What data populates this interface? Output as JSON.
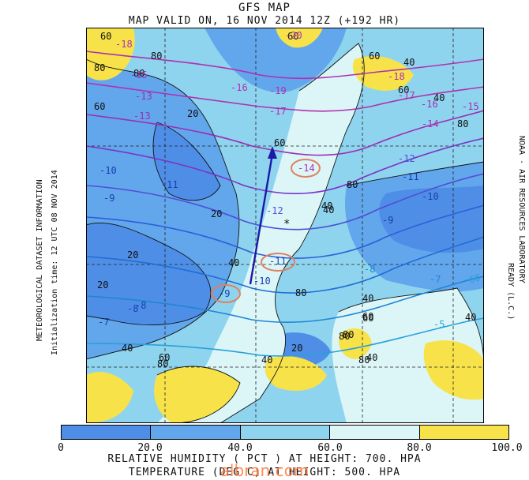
{
  "header": {
    "title": "GFS MAP",
    "subtitle": "MAP VALID ON, 16 NOV 2014 12Z (+192 HR)"
  },
  "side_left": {
    "line1": "METEOROLOGICAL DATASET INFORMATION",
    "line2": "Initialization time: 12 UTC 08 NOV 2014"
  },
  "side_right": {
    "text": "NOAA - AIR RESOURCES LABORATORY",
    "text2": "READY (L.C.)"
  },
  "colorbar": {
    "colors": [
      "#4f8ee6",
      "#62a6ec",
      "#8fd4ee",
      "#dcf6f8",
      "#f7e24a"
    ],
    "ticks": [
      "0",
      "20.0",
      "40.0",
      "60.0",
      "80.0",
      "100.0"
    ]
  },
  "caption": {
    "line1": "RELATIVE HUMIDITY ( PCT  ) AT HEIGHT: 700. HPA",
    "line2": "TEMPERATURE (DEG C) AT HEIGHT: 500. HPA"
  },
  "watermark": "albran.com",
  "map_labels": {
    "rh": [
      "60",
      "80",
      "80",
      "60",
      "80",
      "60",
      "60",
      "40",
      "20",
      "40",
      "20",
      "40",
      "20",
      "20",
      "60",
      "40",
      "40",
      "40",
      "40",
      "60",
      "60",
      "80",
      "80",
      "40",
      "40",
      "20",
      "80",
      "80",
      "40",
      "60",
      "80",
      "60",
      "80",
      "80"
    ],
    "temp": [
      "-20",
      "-18",
      "-15",
      "-16",
      "-19",
      "-13",
      "-18",
      "-17",
      "-16",
      "-15",
      "-14",
      "-13",
      "-12",
      "-11",
      "-10",
      "-9",
      "-8",
      "-7",
      "-12",
      "-11",
      "-10",
      "-9",
      "-8",
      "-7",
      "-6",
      "-5",
      "-14",
      "-17",
      "-11",
      "-10",
      "-9",
      "-8",
      "-6"
    ],
    "circled_temps": [
      "-14",
      "-11",
      "-9"
    ]
  }
}
